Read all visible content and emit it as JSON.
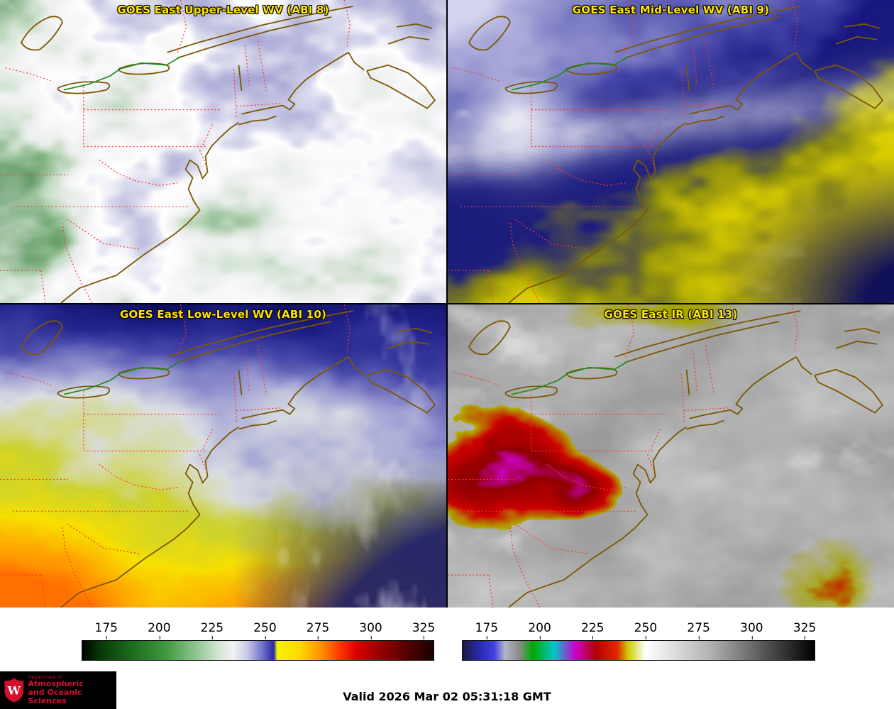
{
  "panels": [
    {
      "title": "GOES East Upper-Level WV (ABI 8)"
    },
    {
      "title": "GOES East Mid-Level WV (ABI 9)"
    },
    {
      "title": "GOES East Low-Level WV (ABI 10)"
    },
    {
      "title": "GOES East IR (ABI 13)"
    }
  ],
  "title_color": "#ffe400",
  "map_overlay": {
    "coast_color": "#7a5804",
    "border_color": "#ff3333",
    "treaty_line_color": "#1f8a1f"
  },
  "colorbars": [
    {
      "name": "water-vapor-temperature-scale",
      "ticks": [
        "175",
        "200",
        "225",
        "250",
        "275",
        "300",
        "325"
      ],
      "stops": [
        [
          0,
          "#000000"
        ],
        [
          0.05,
          "#063906"
        ],
        [
          0.14,
          "#1d6b1d"
        ],
        [
          0.24,
          "#3f9a3f"
        ],
        [
          0.32,
          "#8cc48c"
        ],
        [
          0.38,
          "#cde2cd"
        ],
        [
          0.43,
          "#f2f2f4"
        ],
        [
          0.47,
          "#c9c9e8"
        ],
        [
          0.51,
          "#7878cc"
        ],
        [
          0.545,
          "#2a2aa8"
        ],
        [
          0.555,
          "#f4f400"
        ],
        [
          0.62,
          "#ffd800"
        ],
        [
          0.68,
          "#ff9100"
        ],
        [
          0.73,
          "#ff3c00"
        ],
        [
          0.78,
          "#d90000"
        ],
        [
          0.85,
          "#970000"
        ],
        [
          0.93,
          "#4f0000"
        ],
        [
          1,
          "#1c0000"
        ]
      ]
    },
    {
      "name": "ir-temperature-scale",
      "ticks": [
        "175",
        "200",
        "225",
        "250",
        "275",
        "300",
        "325"
      ],
      "stops": [
        [
          0,
          "#1a1a40"
        ],
        [
          0.05,
          "#2a2ab4"
        ],
        [
          0.09,
          "#4242e0"
        ],
        [
          0.12,
          "#b4b4c8"
        ],
        [
          0.16,
          "#8c8c8c"
        ],
        [
          0.2,
          "#00a800"
        ],
        [
          0.26,
          "#00c8c8"
        ],
        [
          0.32,
          "#cc00cc"
        ],
        [
          0.38,
          "#b40000"
        ],
        [
          0.44,
          "#e42800"
        ],
        [
          0.47,
          "#cccc00"
        ],
        [
          0.52,
          "#ffffff"
        ],
        [
          0.7,
          "#b4b4b4"
        ],
        [
          0.85,
          "#5a5a5a"
        ],
        [
          1,
          "#000000"
        ]
      ]
    }
  ],
  "panel_fields": {
    "abi8": {
      "palette": [
        [
          0,
          "#2f7a33"
        ],
        [
          0.18,
          "#74ab74"
        ],
        [
          0.32,
          "#bcd6bc"
        ],
        [
          0.45,
          "#e7ece7"
        ],
        [
          0.58,
          "#f7f7fa"
        ],
        [
          0.68,
          "#ffffff"
        ],
        [
          0.78,
          "#dadaee"
        ],
        [
          0.88,
          "#bfbfe0"
        ],
        [
          1,
          "#a4a4d4"
        ]
      ]
    },
    "abi9": {
      "palette": [
        [
          0,
          "#e8dc00"
        ],
        [
          0.18,
          "#d8cc00"
        ],
        [
          0.27,
          "#8a8a10"
        ],
        [
          0.36,
          "#1e1e7c"
        ],
        [
          0.5,
          "#16167e"
        ],
        [
          0.62,
          "#4242a6"
        ],
        [
          0.74,
          "#8080c6"
        ],
        [
          0.86,
          "#aaaada"
        ],
        [
          1,
          "#d4d4ee"
        ]
      ],
      "corner_navy": "#10105a"
    },
    "abi10": {
      "palette": [
        [
          0,
          "#ff7000"
        ],
        [
          0.12,
          "#ffa600"
        ],
        [
          0.26,
          "#f8e000"
        ],
        [
          0.4,
          "#ccd22e"
        ],
        [
          0.52,
          "#dadee2"
        ],
        [
          0.62,
          "#9a9ad2"
        ],
        [
          0.74,
          "#4c4cac"
        ],
        [
          0.86,
          "#24248e"
        ],
        [
          1,
          "#0e0e60"
        ]
      ],
      "ocean_navy": "#16166e"
    },
    "abi13": {
      "gray_base": 168,
      "cloud_white": "#f2f2f2",
      "cold_yellow": "#b0b000",
      "cold_red": "#cc0000",
      "cold_darkred": "#8e0000",
      "cold_magenta": "#d200d2",
      "olive": "#a5a500"
    }
  },
  "footer": {
    "valid_time": "Valid 2026 Mar 02 05:31:18 GMT",
    "logo": {
      "monogram": "W",
      "dept_prefix": "Department of",
      "dept_line1": "Atmospheric",
      "dept_line2": "and Oceanic Sciences",
      "bg": "#000000",
      "red": "#d2112e"
    }
  }
}
